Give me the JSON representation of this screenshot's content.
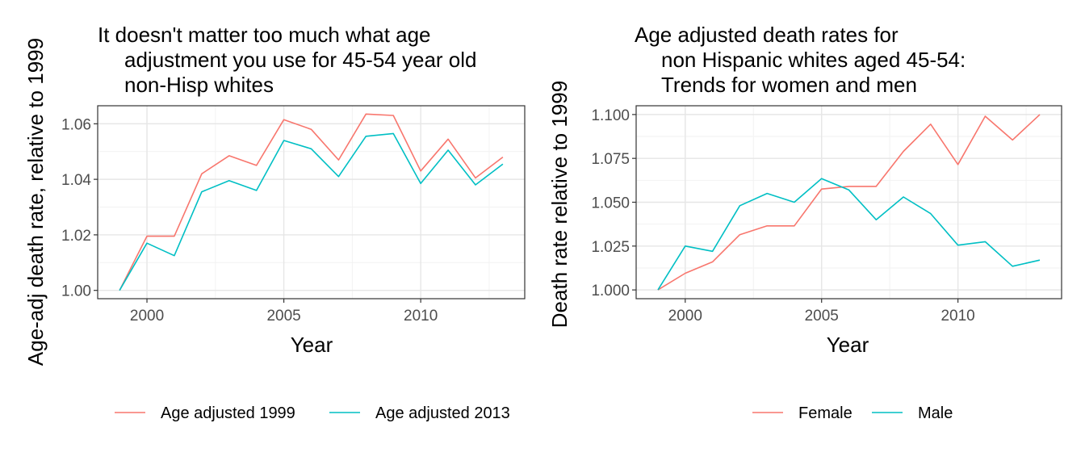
{
  "chart_data": [
    {
      "type": "line",
      "title_lines": [
        "It doesn't matter too much what age",
        "adjustment you use for 45-54 year old",
        "non-Hisp whites"
      ],
      "xlabel": "Year",
      "ylabel": "Age-adj death rate, relative to 1999",
      "xlim": [
        1998.2,
        2013.8
      ],
      "ylim": [
        0.997,
        1.0665
      ],
      "x_ticks": [
        2000,
        2005,
        2010
      ],
      "y_ticks": [
        1.0,
        1.02,
        1.04,
        1.06
      ],
      "y_tick_labels": [
        "1.00",
        "1.02",
        "1.04",
        "1.06"
      ],
      "grid": true,
      "legend_position": "bottom",
      "x": [
        1999,
        2000,
        2001,
        2002,
        2003,
        2004,
        2005,
        2006,
        2007,
        2008,
        2009,
        2010,
        2011,
        2012,
        2013
      ],
      "series": [
        {
          "name": "Age adjusted 1999",
          "color": "#F8766D",
          "values": [
            1.0,
            1.0195,
            1.0195,
            1.042,
            1.0485,
            1.045,
            1.0615,
            1.058,
            1.047,
            1.0635,
            1.063,
            1.043,
            1.0545,
            1.0405,
            1.048
          ]
        },
        {
          "name": "Age adjusted 2013",
          "color": "#00BFC4",
          "values": [
            1.0,
            1.017,
            1.0125,
            1.0355,
            1.0395,
            1.036,
            1.054,
            1.051,
            1.041,
            1.0555,
            1.0565,
            1.0385,
            1.0505,
            1.038,
            1.0455
          ]
        }
      ]
    },
    {
      "type": "line",
      "title_lines": [
        "Age adjusted death rates for",
        "non Hispanic whites aged 45-54:",
        "Trends for women and men"
      ],
      "xlabel": "Year",
      "ylabel": "Death rate relative to 1999",
      "xlim": [
        1998.2,
        2013.8
      ],
      "ylim": [
        0.995,
        1.105
      ],
      "x_ticks": [
        2000,
        2005,
        2010
      ],
      "y_ticks": [
        1.0,
        1.025,
        1.05,
        1.075,
        1.1
      ],
      "y_tick_labels": [
        "1.000",
        "1.025",
        "1.050",
        "1.075",
        "1.100"
      ],
      "grid": true,
      "legend_position": "bottom",
      "x": [
        1999,
        2000,
        2001,
        2002,
        2003,
        2004,
        2005,
        2006,
        2007,
        2008,
        2009,
        2010,
        2011,
        2012,
        2013
      ],
      "series": [
        {
          "name": "Female",
          "color": "#F8766D",
          "values": [
            1.0,
            1.0095,
            1.016,
            1.0315,
            1.0365,
            1.0365,
            1.0575,
            1.059,
            1.059,
            1.079,
            1.0945,
            1.0715,
            1.099,
            1.0855,
            1.1
          ]
        },
        {
          "name": "Male",
          "color": "#00BFC4",
          "values": [
            1.0,
            1.025,
            1.022,
            1.048,
            1.055,
            1.05,
            1.0635,
            1.057,
            1.04,
            1.053,
            1.0435,
            1.0255,
            1.0275,
            1.0135,
            1.017
          ]
        }
      ]
    }
  ]
}
